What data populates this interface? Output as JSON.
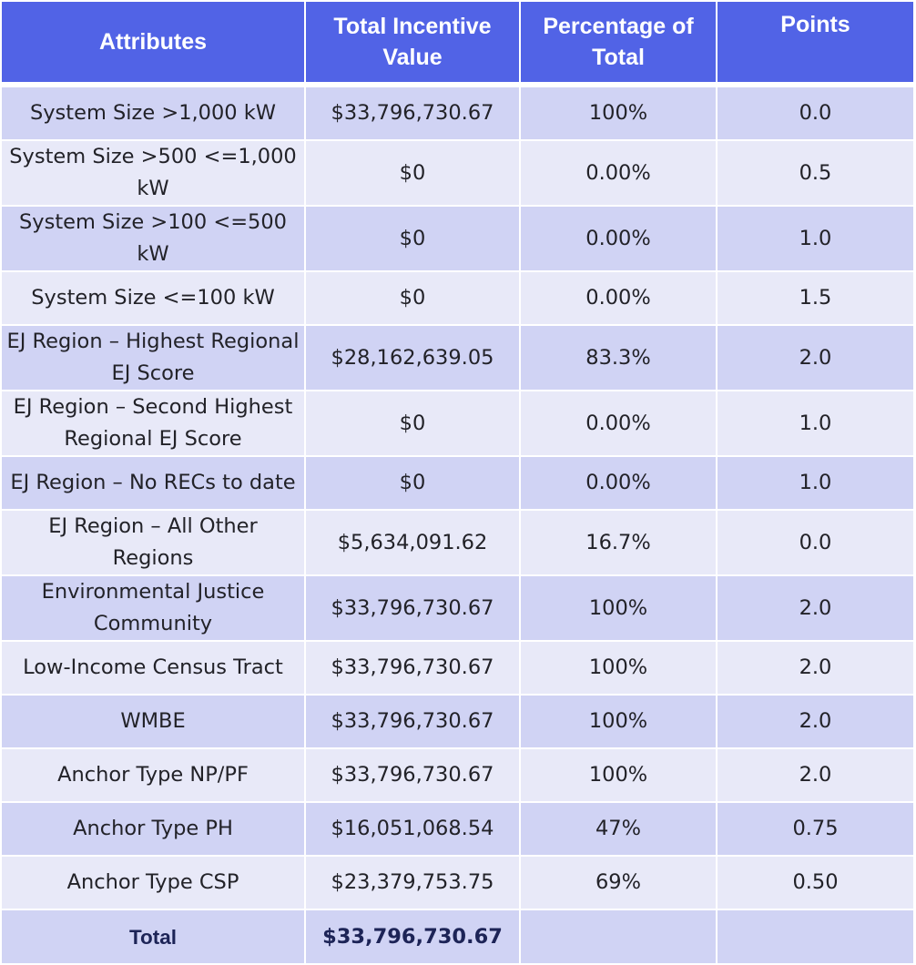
{
  "headers": {
    "attributes": "Attributes",
    "total_incentive_value": "Total Incentive Value",
    "percentage_of_total": "Percentage of Total",
    "points": "Points"
  },
  "rows": [
    {
      "attribute": "System Size >1,000 kW",
      "value": "$33,796,730.67",
      "percent": "100%",
      "points": "0.0"
    },
    {
      "attribute": "System Size >500 <=1,000 kW",
      "value": "$0",
      "percent": "0.00%",
      "points": "0.5"
    },
    {
      "attribute": "System Size >100 <=500 kW",
      "value": "$0",
      "percent": "0.00%",
      "points": "1.0"
    },
    {
      "attribute": "System Size <=100 kW",
      "value": "$0",
      "percent": "0.00%",
      "points": "1.5"
    },
    {
      "attribute": "EJ Region – Highest Regional EJ Score",
      "value": "$28,162,639.05",
      "percent": "83.3%",
      "points": "2.0"
    },
    {
      "attribute": "EJ Region – Second Highest Regional EJ Score",
      "value": "$0",
      "percent": "0.00%",
      "points": "1.0"
    },
    {
      "attribute": "EJ Region – No RECs to date",
      "value": "$0",
      "percent": "0.00%",
      "points": "1.0"
    },
    {
      "attribute": "EJ Region – All Other Regions",
      "value": "$5,634,091.62",
      "percent": "16.7%",
      "points": "0.0"
    },
    {
      "attribute": "Environmental Justice Community",
      "value": "$33,796,730.67",
      "percent": "100%",
      "points": "2.0"
    },
    {
      "attribute": "Low-Income Census Tract",
      "value": "$33,796,730.67",
      "percent": "100%",
      "points": "2.0"
    },
    {
      "attribute": "WMBE",
      "value": "$33,796,730.67",
      "percent": "100%",
      "points": "2.0"
    },
    {
      "attribute": "Anchor Type NP/PF",
      "value": "$33,796,730.67",
      "percent": "100%",
      "points": "2.0"
    },
    {
      "attribute": "Anchor Type PH",
      "value": "$16,051,068.54",
      "percent": "47%",
      "points": "0.75"
    },
    {
      "attribute": "Anchor Type CSP",
      "value": "$23,379,753.75",
      "percent": "69%",
      "points": "0.50"
    }
  ],
  "total": {
    "label": "Total",
    "value": "$33,796,730.67",
    "percent": "",
    "points": ""
  },
  "colors": {
    "header_bg": "#5163e6",
    "row_dark": "#d0d3f4",
    "row_light": "#e8e9f8",
    "total_text": "#1d2457"
  }
}
